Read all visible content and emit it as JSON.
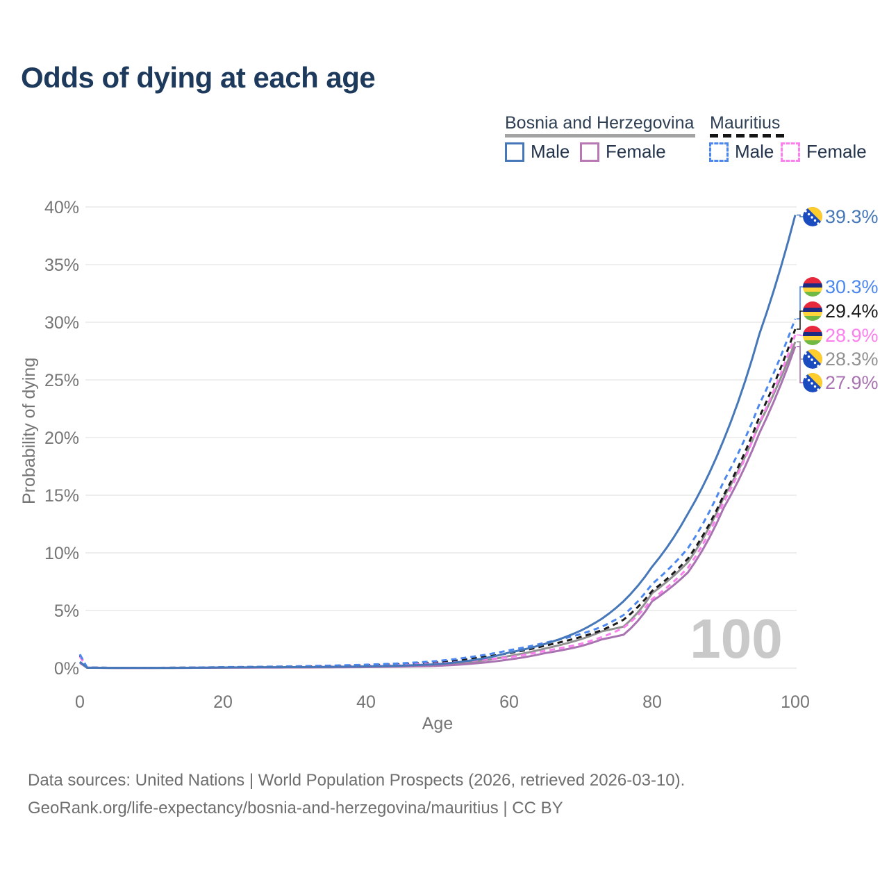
{
  "title": "Odds of dying at each age",
  "watermark": "100",
  "legend": {
    "groups": [
      {
        "label": "Bosnia and Herzegovina",
        "header_line_style": "solid",
        "header_line_color": "#a3a3a3",
        "items": [
          {
            "label": "Male",
            "swatch_color": "#4677b8",
            "dashed": false
          },
          {
            "label": "Female",
            "swatch_color": "#b878b4",
            "dashed": false
          }
        ]
      },
      {
        "label": "Mauritius",
        "header_line_style": "dashed",
        "header_line_color": "#141414",
        "items": [
          {
            "label": "Male",
            "swatch_color": "#4b87ef",
            "dashed": true
          },
          {
            "label": "Female",
            "swatch_color": "#fb80ee",
            "dashed": true
          }
        ]
      }
    ]
  },
  "axes": {
    "x_label": "Age",
    "y_label": "Probability of dying",
    "x_tick_values": [
      0,
      20,
      40,
      60,
      80,
      100
    ],
    "x_tick_labels": [
      "0",
      "20",
      "40",
      "60",
      "80",
      "100"
    ],
    "y_tick_values": [
      0,
      5,
      10,
      15,
      20,
      25,
      30,
      35,
      40
    ],
    "y_tick_labels": [
      "0%",
      "5%",
      "10%",
      "15%",
      "20%",
      "25%",
      "30%",
      "35%",
      "40%"
    ]
  },
  "chart_data": {
    "type": "line",
    "title": "Odds of dying at each age",
    "xlabel": "Age",
    "ylabel": "Probability of dying",
    "unit": "%",
    "xlim": [
      0,
      100
    ],
    "ylim": [
      0,
      40
    ],
    "grid": "horizontal",
    "legend_position": "top-right",
    "x": [
      0,
      1,
      5,
      10,
      15,
      20,
      25,
      30,
      35,
      40,
      45,
      50,
      55,
      60,
      65,
      70,
      73,
      76,
      80,
      85,
      90,
      95,
      100
    ],
    "series": [
      {
        "name": "Bosnia and Herzegovina — Male",
        "style": "solid",
        "color": "#4677b8",
        "flag": "ba",
        "end_label": "39.3%",
        "end_label_color": "#4677b8",
        "values": [
          0.55,
          0.04,
          0.02,
          0.02,
          0.03,
          0.06,
          0.08,
          0.09,
          0.11,
          0.15,
          0.22,
          0.35,
          0.7,
          1.35,
          2.1,
          3.25,
          4.3,
          5.8,
          8.8,
          13.4,
          19.8,
          29.0,
          39.3
        ]
      },
      {
        "name": "Mauritius — Male",
        "style": "dashed",
        "color": "#4b87ef",
        "flag": "mu",
        "end_label": "30.3%",
        "end_label_color": "#4b87ef",
        "values": [
          1.2,
          0.06,
          0.03,
          0.03,
          0.05,
          0.09,
          0.12,
          0.16,
          0.22,
          0.3,
          0.42,
          0.62,
          1.0,
          1.55,
          2.2,
          2.95,
          3.6,
          4.6,
          7.3,
          10.4,
          16.2,
          22.9,
          30.3
        ]
      },
      {
        "name": "Mauritius — Both sexes",
        "style": "dashed",
        "color": "#1a1a1a",
        "flag": "mu",
        "end_label": "29.4%",
        "end_label_color": "#1a1a1a",
        "values": [
          1.1,
          0.055,
          0.027,
          0.027,
          0.045,
          0.075,
          0.1,
          0.13,
          0.18,
          0.25,
          0.35,
          0.5,
          0.85,
          1.3,
          1.95,
          2.7,
          3.3,
          4.2,
          6.7,
          9.5,
          15.0,
          21.8,
          29.4
        ]
      },
      {
        "name": "Mauritius — Female",
        "style": "dashed",
        "color": "#fb80ee",
        "flag": "mu",
        "end_label": "28.9%",
        "end_label_color": "#fb80ee",
        "values": [
          1.0,
          0.05,
          0.025,
          0.025,
          0.04,
          0.06,
          0.08,
          0.1,
          0.14,
          0.2,
          0.28,
          0.4,
          0.65,
          0.95,
          1.5,
          2.1,
          2.7,
          3.5,
          6.0,
          8.7,
          14.4,
          21.3,
          28.9
        ]
      },
      {
        "name": "Bosnia and Herzegovina — Both sexes",
        "style": "solid",
        "color": "#919191",
        "flag": "ba",
        "end_label": "28.3%",
        "end_label_color": "#919191",
        "values": [
          0.5,
          0.038,
          0.019,
          0.019,
          0.028,
          0.05,
          0.065,
          0.075,
          0.09,
          0.12,
          0.18,
          0.28,
          0.55,
          1.05,
          1.7,
          2.5,
          3.2,
          3.6,
          6.5,
          9.2,
          14.8,
          21.2,
          28.3
        ]
      },
      {
        "name": "Bosnia and Herzegovina — Female",
        "style": "solid",
        "color": "#a873b0",
        "flag": "ba",
        "end_label": "27.9%",
        "end_label_color": "#a873b0",
        "values": [
          0.45,
          0.035,
          0.018,
          0.018,
          0.025,
          0.04,
          0.05,
          0.06,
          0.07,
          0.09,
          0.13,
          0.2,
          0.4,
          0.75,
          1.3,
          1.9,
          2.5,
          2.9,
          5.8,
          8.3,
          13.9,
          20.4,
          27.9
        ]
      }
    ]
  },
  "footer": {
    "line1": "Data sources: United Nations | World Population Prospects (2026, retrieved 2026-03-10).",
    "line2": "GeoRank.org/life-expectancy/bosnia-and-herzegovina/mauritius | CC BY"
  }
}
